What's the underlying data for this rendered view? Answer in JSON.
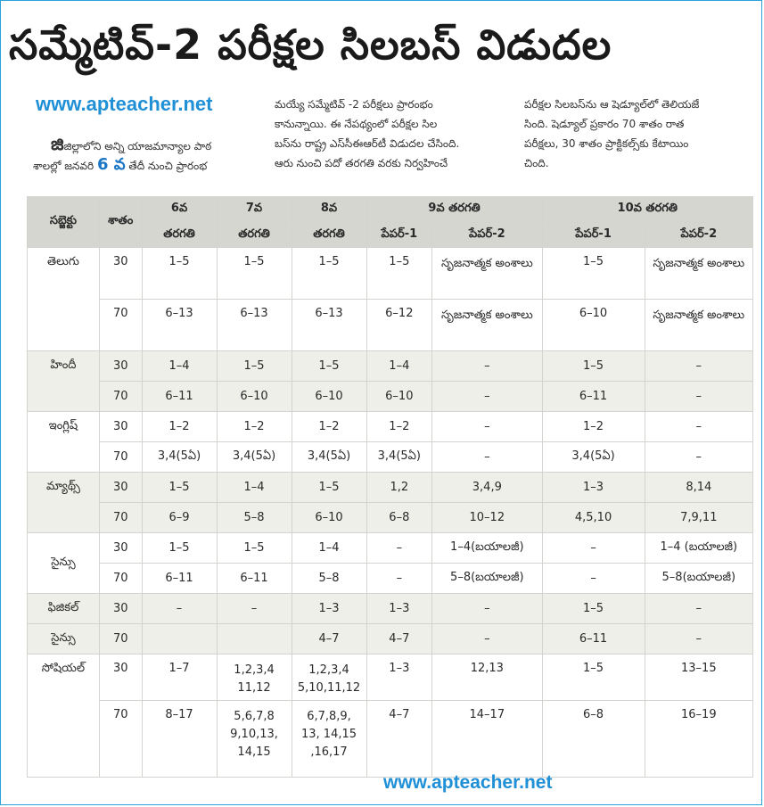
{
  "headline": "సమ్మేటివ్‌-2 పరీక్షల సిలబస్‌ విడుదల",
  "watermark": "www.apteacher.net",
  "article": {
    "col1_line1": "జిల్లాలోని అన్ని యాజమాన్యాల పాఠ",
    "col1_line2": "శాలల్లో జనవరి",
    "col1_num": "6 వ",
    "col1_line2b": "తేదీ నుంచి ప్రారంభ",
    "col2_line1": "మయ్యే సమ్మేటివ్‌ -2 పరీక్షలు ప్రారంభం",
    "col2_line2": "కానున్నాయి. ఈ నేపథ్యంలో పరీక్షల సిల",
    "col2_line3": "బస్‌ను రాష్ట్ర ఎస్‌సీఈఆర్‌టీ విడుదల చేసింది.",
    "col2_line4": "ఆరు నుంచి పదో తరగతి వరకు నిర్వహించే",
    "col3_line1": "పరీక్షల సిలబస్‌ను ఆ షెడ్యూల్‌లో తెలియజే",
    "col3_line2": "సింది. షెడ్యూల్‌ ప్రకారం 70 శాతం రాత",
    "col3_line3": "పరీక్షలు, 30 శాతం ప్రాక్టికల్స్‌కు కేటాయిం",
    "col3_line4": "చింది."
  },
  "table": {
    "h_subject": "సబ్జెక్టు",
    "h_percent": "శాతం",
    "h_c6a": "6వ",
    "h_c6b": "తరగతి",
    "h_c7a": "7వ",
    "h_c7b": "తరగతి",
    "h_c8a": "8వ",
    "h_c8b": "తరగతి",
    "h_c9": "9వ తరగతి",
    "h_c10": "10వ తరగతి",
    "h_p1": "పేపర్‌-1",
    "h_p2": "పేపర్‌-2",
    "rows": [
      {
        "subject": "తెలుగు",
        "pct": "30",
        "c6": "1–5",
        "c7": "1–5",
        "c8": "1–5",
        "p91": "1–5",
        "p92": "సృజనాత్మక అంశాలు",
        "p101": "1–5",
        "p102": "సృజనాత్మక అంశాలు"
      },
      {
        "subject": "",
        "pct": "70",
        "c6": "6–13",
        "c7": "6–13",
        "c8": "6–13",
        "p91": "6–12",
        "p92": "సృజనాత్మక అంశాలు",
        "p101": "6–10",
        "p102": "సృజనాత్మక అంశాలు"
      },
      {
        "subject": "హిందీ",
        "pct": "30",
        "c6": "1–4",
        "c7": "1–5",
        "c8": "1–5",
        "p91": "1–4",
        "p92": "–",
        "p101": "1–5",
        "p102": "–"
      },
      {
        "subject": "",
        "pct": "70",
        "c6": "6–11",
        "c7": "6–10",
        "c8": "6–10",
        "p91": "6–10",
        "p92": "–",
        "p101": "6–11",
        "p102": "–"
      },
      {
        "subject": "ఇంగ్లిష్‌",
        "pct": "30",
        "c6": "1–2",
        "c7": "1–2",
        "c8": "1–2",
        "p91": "1–2",
        "p92": "–",
        "p101": "1–2",
        "p102": "–"
      },
      {
        "subject": "",
        "pct": "70",
        "c6": "3,4(5ఏ)",
        "c7": "3,4(5ఏ)",
        "c8": "3,4(5ఏ)",
        "p91": "3,4(5ఏ)",
        "p92": "–",
        "p101": "3,4(5ఏ)",
        "p102": "–"
      },
      {
        "subject": "మ్యాథ్స్‌",
        "pct": "30",
        "c6": "1–5",
        "c7": "1–4",
        "c8": "1–5",
        "p91": "1,2",
        "p92": "3,4,9",
        "p101": "1–3",
        "p102": "8,14"
      },
      {
        "subject": "",
        "pct": "70",
        "c6": "6–9",
        "c7": "5–8",
        "c8": "6–10",
        "p91": "6–8",
        "p92": "10–12",
        "p101": "4,5,10",
        "p102": "7,9,11"
      },
      {
        "subject": "సైన్సు",
        "pct": "30",
        "c6": "1–5",
        "c7": "1–5",
        "c8": "1–4",
        "p91": "–",
        "p92": "1–4(బయాలజీ)",
        "p101": "–",
        "p102": "1–4 (బయాలజీ)"
      },
      {
        "subject": "",
        "pct": "70",
        "c6": "6–11",
        "c7": "6–11",
        "c8": "5–8",
        "p91": "–",
        "p92": "5–8(బయాలజీ)",
        "p101": "–",
        "p102": "5–8(బయాలజీ)"
      },
      {
        "subject": "ఫిజికల్‌",
        "pct": "30",
        "c6": "–",
        "c7": "–",
        "c8": "1–3",
        "p91": "1–3",
        "p92": "–",
        "p101": "1–5",
        "p102": "–"
      },
      {
        "subject": "సైన్సు",
        "pct": "70",
        "c6": "",
        "c7": "",
        "c8": "4–7",
        "p91": "4–7",
        "p92": "–",
        "p101": "6–11",
        "p102": "–"
      },
      {
        "subject": "సోషియల్‌",
        "pct": "30",
        "c6": "1–7",
        "c7a": "1,2,3,4",
        "c7b": "11,12",
        "c8a": "1,2,3,4",
        "c8b": "5,10,11,12",
        "p91": "1–3",
        "p92": "12,13",
        "p101": "1–5",
        "p102": "13–15"
      },
      {
        "subject": "",
        "pct": "70",
        "c6": "8–17",
        "c7a": "5,6,7,8",
        "c7b": "9,10,13,",
        "c7c": "14,15",
        "c8a": "6,7,8,9,",
        "c8b": "13, 14,15",
        "c8c": ",16,17",
        "p91": "4–7",
        "p92": "14–17",
        "p101": "6–8",
        "p102": "16–19"
      }
    ]
  }
}
